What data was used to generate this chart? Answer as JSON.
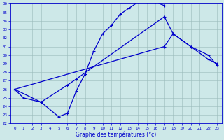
{
  "bg_color": "#cde8e8",
  "line_color": "#0000cc",
  "grid_color": "#99bbbb",
  "xlabel": "Graphe des températures (°c)",
  "ylim": [
    22,
    36
  ],
  "xlim": [
    0,
    23
  ],
  "yticks": [
    22,
    23,
    24,
    25,
    26,
    27,
    28,
    29,
    30,
    31,
    32,
    33,
    34,
    35,
    36
  ],
  "xticks": [
    0,
    1,
    2,
    3,
    4,
    5,
    6,
    7,
    8,
    9,
    10,
    11,
    12,
    13,
    14,
    15,
    16,
    17,
    18,
    19,
    20,
    21,
    22,
    23
  ],
  "line1_x": [
    0,
    1,
    3,
    5,
    6,
    7,
    8,
    9,
    10,
    11,
    12,
    13,
    14,
    15,
    16,
    17
  ],
  "line1_y": [
    26.0,
    25.0,
    24.5,
    22.8,
    23.2,
    25.8,
    27.8,
    30.5,
    32.5,
    33.5,
    34.8,
    35.5,
    36.2,
    36.2,
    36.2,
    35.8
  ],
  "line2_x": [
    0,
    3,
    6,
    7,
    17,
    18,
    20,
    22,
    23
  ],
  "line2_y": [
    26.0,
    24.5,
    26.5,
    27.2,
    34.5,
    32.5,
    31.0,
    30.0,
    28.8
  ],
  "line3_x": [
    0,
    17,
    18,
    20,
    22,
    23
  ],
  "line3_y": [
    26.0,
    31.0,
    32.5,
    31.0,
    29.5,
    29.0
  ]
}
